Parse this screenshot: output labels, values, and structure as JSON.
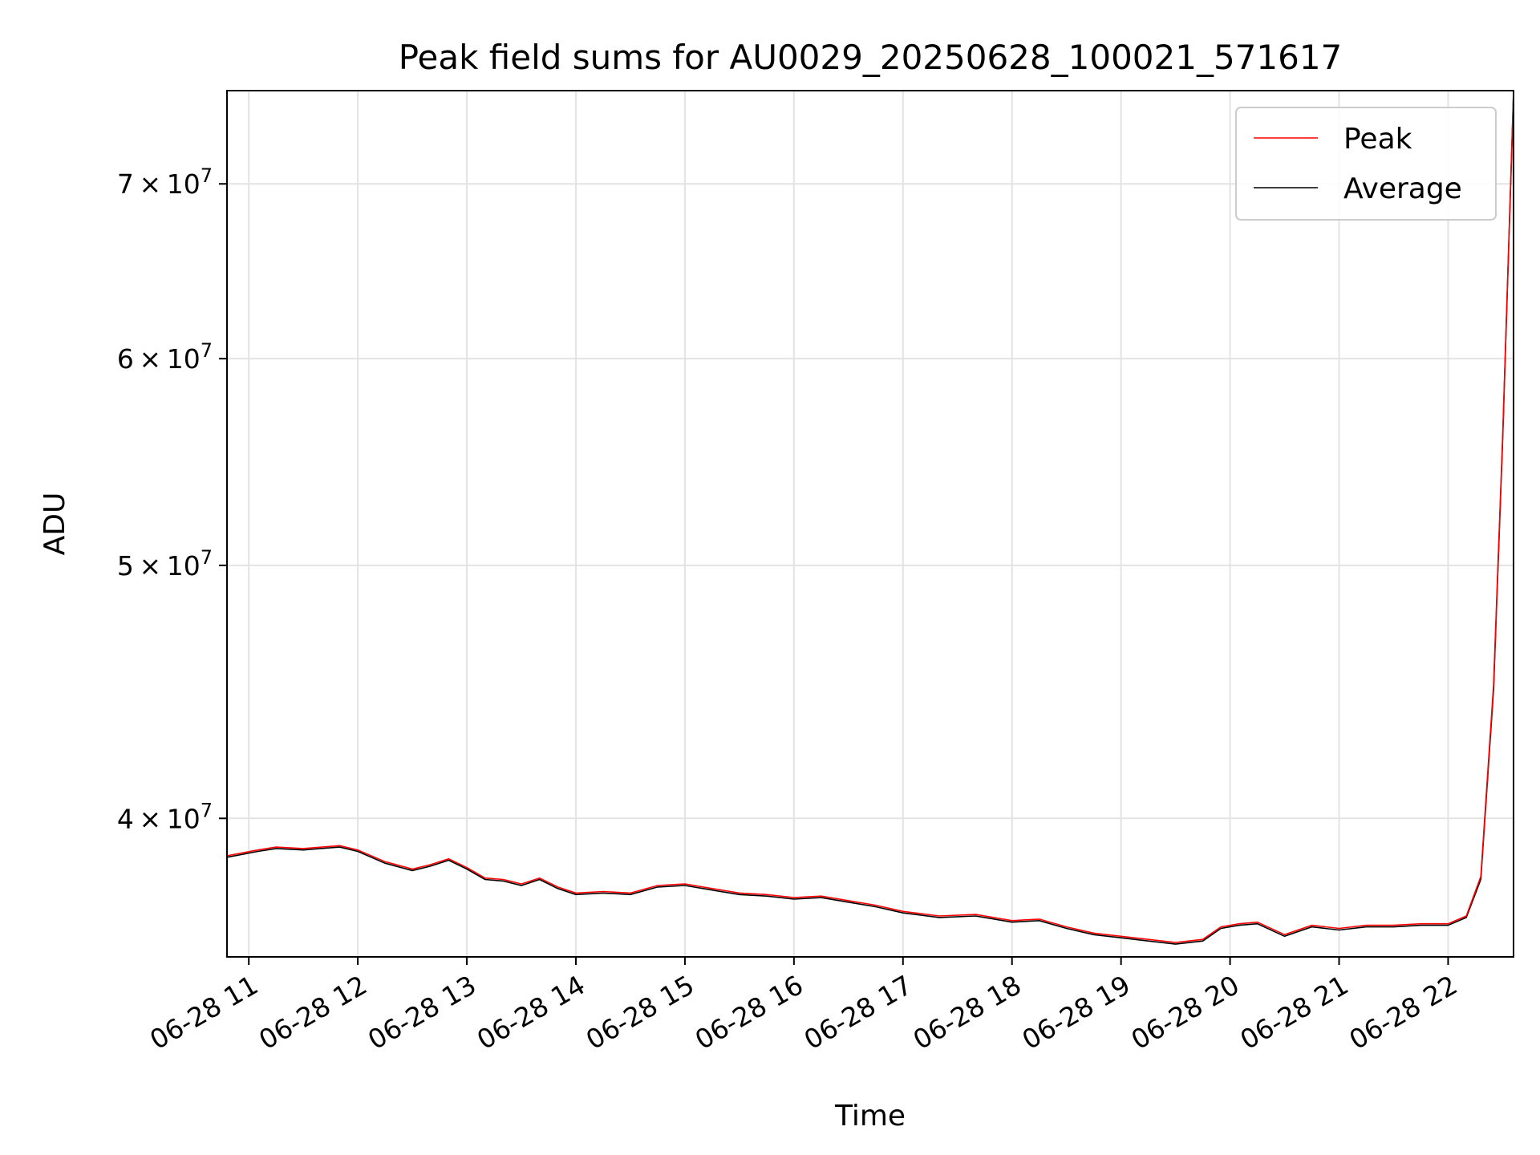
{
  "chart_data": {
    "type": "line",
    "title": "Peak field sums for AU0029_20250628_100021_571617",
    "xlabel": "Time",
    "ylabel": "ADU",
    "y_scale": "log",
    "grid": true,
    "legend_position": "top-right",
    "xlim": [
      "2025-06-28T10:48",
      "2025-06-28T22:36"
    ],
    "ylim": [
      35400000,
      76000000
    ],
    "x_ticks": [
      {
        "value": "2025-06-28T11:00",
        "label": "06-28 11"
      },
      {
        "value": "2025-06-28T12:00",
        "label": "06-28 12"
      },
      {
        "value": "2025-06-28T13:00",
        "label": "06-28 13"
      },
      {
        "value": "2025-06-28T14:00",
        "label": "06-28 14"
      },
      {
        "value": "2025-06-28T15:00",
        "label": "06-28 15"
      },
      {
        "value": "2025-06-28T16:00",
        "label": "06-28 16"
      },
      {
        "value": "2025-06-28T17:00",
        "label": "06-28 17"
      },
      {
        "value": "2025-06-28T18:00",
        "label": "06-28 18"
      },
      {
        "value": "2025-06-28T19:00",
        "label": "06-28 19"
      },
      {
        "value": "2025-06-28T20:00",
        "label": "06-28 20"
      },
      {
        "value": "2025-06-28T21:00",
        "label": "06-28 21"
      },
      {
        "value": "2025-06-28T22:00",
        "label": "06-28 22"
      }
    ],
    "y_ticks": [
      {
        "value": 40000000,
        "mantissa": "4",
        "exponent": "7"
      },
      {
        "value": 50000000,
        "mantissa": "5",
        "exponent": "7"
      },
      {
        "value": 60000000,
        "mantissa": "6",
        "exponent": "7"
      },
      {
        "value": 70000000,
        "mantissa": "7",
        "exponent": "7"
      }
    ],
    "series": [
      {
        "name": "Peak",
        "color": "#ff0000",
        "points": [
          [
            "2025-06-28T10:48",
            38700000
          ],
          [
            "2025-06-28T11:05",
            38900000
          ],
          [
            "2025-06-28T11:15",
            39000000
          ],
          [
            "2025-06-28T11:30",
            38950000
          ],
          [
            "2025-06-28T11:50",
            39050000
          ],
          [
            "2025-06-28T12:00",
            38900000
          ],
          [
            "2025-06-28T12:15",
            38500000
          ],
          [
            "2025-06-28T12:30",
            38250000
          ],
          [
            "2025-06-28T12:40",
            38400000
          ],
          [
            "2025-06-28T12:50",
            38600000
          ],
          [
            "2025-06-28T13:00",
            38300000
          ],
          [
            "2025-06-28T13:10",
            37950000
          ],
          [
            "2025-06-28T13:20",
            37900000
          ],
          [
            "2025-06-28T13:30",
            37750000
          ],
          [
            "2025-06-28T13:40",
            37950000
          ],
          [
            "2025-06-28T13:50",
            37650000
          ],
          [
            "2025-06-28T14:00",
            37450000
          ],
          [
            "2025-06-28T14:15",
            37500000
          ],
          [
            "2025-06-28T14:30",
            37450000
          ],
          [
            "2025-06-28T14:45",
            37700000
          ],
          [
            "2025-06-28T15:00",
            37750000
          ],
          [
            "2025-06-28T15:15",
            37600000
          ],
          [
            "2025-06-28T15:30",
            37450000
          ],
          [
            "2025-06-28T15:45",
            37400000
          ],
          [
            "2025-06-28T16:00",
            37300000
          ],
          [
            "2025-06-28T16:15",
            37350000
          ],
          [
            "2025-06-28T16:30",
            37200000
          ],
          [
            "2025-06-28T16:45",
            37050000
          ],
          [
            "2025-06-28T17:00",
            36850000
          ],
          [
            "2025-06-28T17:20",
            36700000
          ],
          [
            "2025-06-28T17:40",
            36750000
          ],
          [
            "2025-06-28T18:00",
            36550000
          ],
          [
            "2025-06-28T18:15",
            36600000
          ],
          [
            "2025-06-28T18:30",
            36350000
          ],
          [
            "2025-06-28T18:45",
            36150000
          ],
          [
            "2025-06-28T19:00",
            36050000
          ],
          [
            "2025-06-28T19:15",
            35950000
          ],
          [
            "2025-06-28T19:30",
            35850000
          ],
          [
            "2025-06-28T19:45",
            35950000
          ],
          [
            "2025-06-28T19:55",
            36350000
          ],
          [
            "2025-06-28T20:05",
            36450000
          ],
          [
            "2025-06-28T20:15",
            36500000
          ],
          [
            "2025-06-28T20:30",
            36100000
          ],
          [
            "2025-06-28T20:45",
            36400000
          ],
          [
            "2025-06-28T21:00",
            36300000
          ],
          [
            "2025-06-28T21:15",
            36400000
          ],
          [
            "2025-06-28T21:30",
            36400000
          ],
          [
            "2025-06-28T21:45",
            36450000
          ],
          [
            "2025-06-28T22:00",
            36450000
          ],
          [
            "2025-06-28T22:10",
            36700000
          ],
          [
            "2025-06-28T22:18",
            38000000
          ],
          [
            "2025-06-28T22:25",
            45000000
          ],
          [
            "2025-06-28T22:30",
            56000000
          ],
          [
            "2025-06-28T22:36",
            76000000
          ]
        ]
      },
      {
        "name": "Average",
        "color": "#000000",
        "points": [
          [
            "2025-06-28T10:48",
            38650000
          ],
          [
            "2025-06-28T11:05",
            38850000
          ],
          [
            "2025-06-28T11:15",
            38950000
          ],
          [
            "2025-06-28T11:30",
            38900000
          ],
          [
            "2025-06-28T11:50",
            39000000
          ],
          [
            "2025-06-28T12:00",
            38850000
          ],
          [
            "2025-06-28T12:15",
            38450000
          ],
          [
            "2025-06-28T12:30",
            38200000
          ],
          [
            "2025-06-28T12:40",
            38350000
          ],
          [
            "2025-06-28T12:50",
            38550000
          ],
          [
            "2025-06-28T13:00",
            38250000
          ],
          [
            "2025-06-28T13:10",
            37900000
          ],
          [
            "2025-06-28T13:20",
            37850000
          ],
          [
            "2025-06-28T13:30",
            37700000
          ],
          [
            "2025-06-28T13:40",
            37900000
          ],
          [
            "2025-06-28T13:50",
            37600000
          ],
          [
            "2025-06-28T14:00",
            37400000
          ],
          [
            "2025-06-28T14:15",
            37450000
          ],
          [
            "2025-06-28T14:30",
            37400000
          ],
          [
            "2025-06-28T14:45",
            37650000
          ],
          [
            "2025-06-28T15:00",
            37700000
          ],
          [
            "2025-06-28T15:15",
            37550000
          ],
          [
            "2025-06-28T15:30",
            37400000
          ],
          [
            "2025-06-28T15:45",
            37350000
          ],
          [
            "2025-06-28T16:00",
            37250000
          ],
          [
            "2025-06-28T16:15",
            37300000
          ],
          [
            "2025-06-28T16:30",
            37150000
          ],
          [
            "2025-06-28T16:45",
            37000000
          ],
          [
            "2025-06-28T17:00",
            36800000
          ],
          [
            "2025-06-28T17:20",
            36650000
          ],
          [
            "2025-06-28T17:40",
            36700000
          ],
          [
            "2025-06-28T18:00",
            36500000
          ],
          [
            "2025-06-28T18:15",
            36550000
          ],
          [
            "2025-06-28T18:30",
            36300000
          ],
          [
            "2025-06-28T18:45",
            36100000
          ],
          [
            "2025-06-28T19:00",
            36000000
          ],
          [
            "2025-06-28T19:15",
            35900000
          ],
          [
            "2025-06-28T19:30",
            35800000
          ],
          [
            "2025-06-28T19:45",
            35900000
          ],
          [
            "2025-06-28T19:55",
            36300000
          ],
          [
            "2025-06-28T20:05",
            36400000
          ],
          [
            "2025-06-28T20:15",
            36450000
          ],
          [
            "2025-06-28T20:30",
            36050000
          ],
          [
            "2025-06-28T20:45",
            36350000
          ],
          [
            "2025-06-28T21:00",
            36250000
          ],
          [
            "2025-06-28T21:15",
            36350000
          ],
          [
            "2025-06-28T21:30",
            36350000
          ],
          [
            "2025-06-28T21:45",
            36400000
          ],
          [
            "2025-06-28T22:00",
            36400000
          ],
          [
            "2025-06-28T22:10",
            36650000
          ],
          [
            "2025-06-28T22:18",
            37900000
          ],
          [
            "2025-06-28T22:25",
            44800000
          ],
          [
            "2025-06-28T22:30",
            55800000
          ],
          [
            "2025-06-28T22:36",
            75800000
          ]
        ]
      }
    ]
  }
}
